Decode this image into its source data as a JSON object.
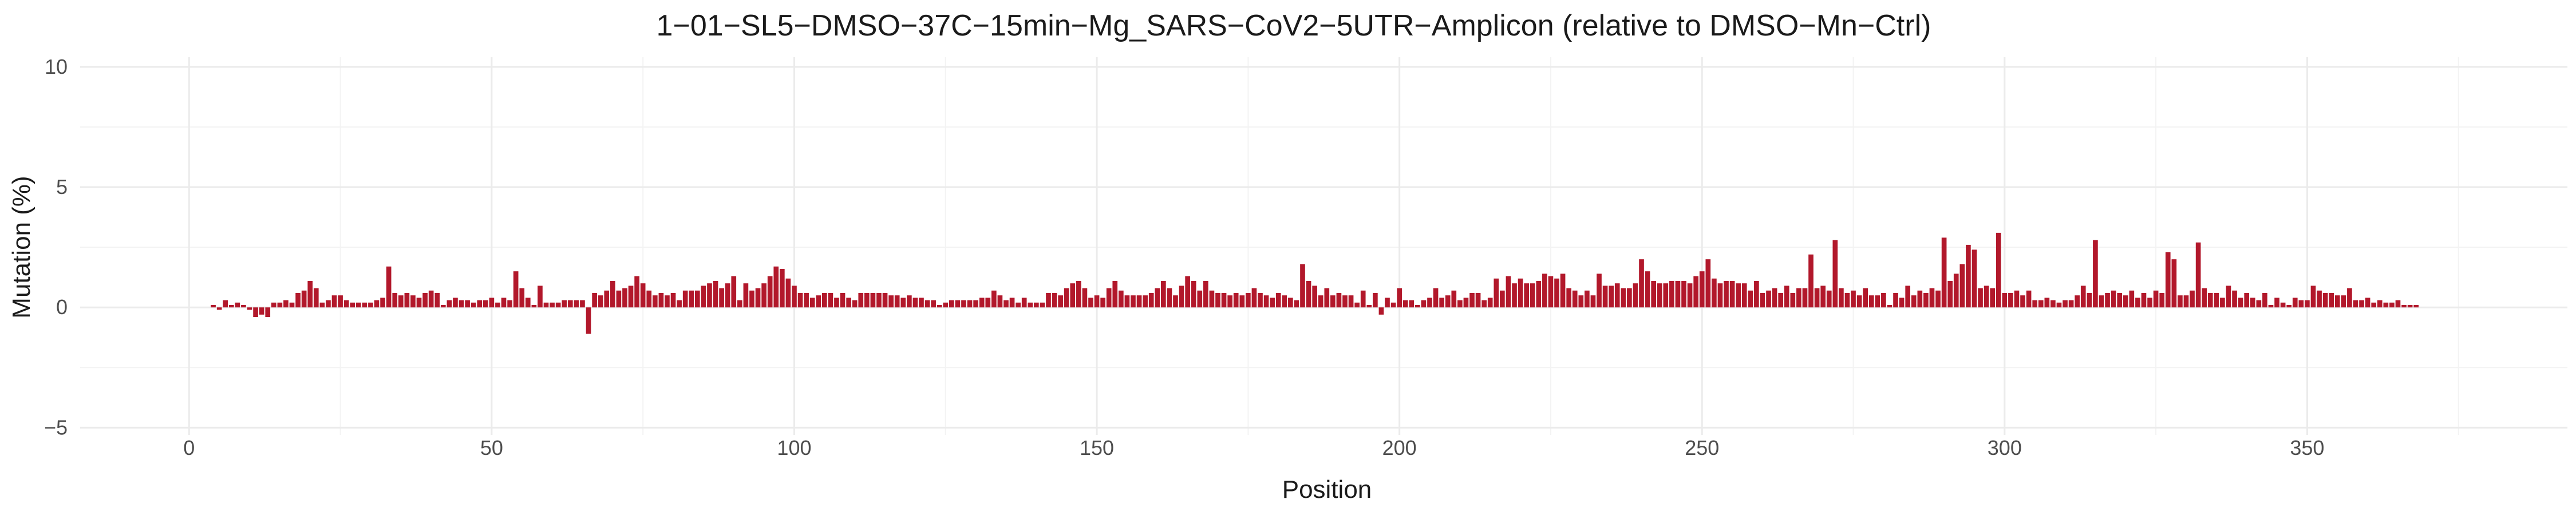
{
  "chart_data": {
    "type": "bar",
    "title": "1−01−SL5−DMSO−37C−15min−Mg_SARS−CoV2−5UTR−Amplicon (relative to DMSO−Mn−Ctrl)",
    "xlabel": "Position",
    "ylabel": "Mutation (%)",
    "xlim": [
      -18,
      393
    ],
    "ylim": [
      -5.3,
      10.4
    ],
    "x_ticks": [
      0,
      50,
      100,
      150,
      200,
      250,
      300,
      350
    ],
    "y_ticks": [
      -5,
      0,
      5,
      10
    ],
    "grid": true,
    "bar_color": "#b2182b",
    "positions": {
      "start": 4,
      "end": 375
    },
    "values": [
      0.1,
      -0.1,
      0.3,
      0.1,
      0.2,
      0.1,
      -0.1,
      -0.4,
      -0.3,
      -0.4,
      0.2,
      0.2,
      0.3,
      0.2,
      0.6,
      0.7,
      1.1,
      0.8,
      0.2,
      0.3,
      0.5,
      0.5,
      0.3,
      0.2,
      0.2,
      0.2,
      0.2,
      0.3,
      0.4,
      1.7,
      0.6,
      0.5,
      0.6,
      0.5,
      0.4,
      0.6,
      0.7,
      0.6,
      0.1,
      0.3,
      0.4,
      0.3,
      0.3,
      0.2,
      0.3,
      0.3,
      0.4,
      0.2,
      0.4,
      0.3,
      1.5,
      0.8,
      0.4,
      0.1,
      0.9,
      0.2,
      0.2,
      0.2,
      0.3,
      0.3,
      0.3,
      0.3,
      -1.1,
      0.6,
      0.5,
      0.7,
      1.1,
      0.7,
      0.8,
      0.9,
      1.3,
      1.0,
      0.7,
      0.5,
      0.6,
      0.5,
      0.6,
      0.3,
      0.7,
      0.7,
      0.7,
      0.9,
      1.0,
      1.1,
      0.8,
      1.0,
      1.3,
      0.3,
      1.0,
      0.7,
      0.8,
      1.0,
      1.3,
      1.7,
      1.6,
      1.2,
      0.9,
      0.6,
      0.6,
      0.4,
      0.5,
      0.6,
      0.6,
      0.4,
      0.6,
      0.4,
      0.3,
      0.6,
      0.6,
      0.6,
      0.6,
      0.6,
      0.5,
      0.5,
      0.4,
      0.5,
      0.4,
      0.4,
      0.3,
      0.3,
      0.1,
      0.2,
      0.3,
      0.3,
      0.3,
      0.3,
      0.3,
      0.4,
      0.4,
      0.7,
      0.5,
      0.3,
      0.4,
      0.2,
      0.4,
      0.2,
      0.2,
      0.2,
      0.6,
      0.6,
      0.5,
      0.8,
      1.0,
      1.1,
      0.8,
      0.4,
      0.5,
      0.4,
      0.8,
      1.1,
      0.7,
      0.5,
      0.5,
      0.5,
      0.5,
      0.6,
      0.8,
      1.1,
      0.8,
      0.5,
      0.9,
      1.3,
      1.1,
      0.7,
      1.1,
      0.7,
      0.6,
      0.6,
      0.5,
      0.6,
      0.5,
      0.6,
      0.8,
      0.6,
      0.5,
      0.4,
      0.6,
      0.5,
      0.4,
      0.3,
      1.8,
      1.1,
      0.9,
      0.5,
      0.8,
      0.5,
      0.6,
      0.5,
      0.5,
      0.2,
      0.7,
      0.1,
      0.6,
      -0.3,
      0.4,
      0.2,
      0.8,
      0.3,
      0.3,
      0.1,
      0.3,
      0.4,
      0.8,
      0.4,
      0.5,
      0.7,
      0.3,
      0.4,
      0.6,
      0.6,
      0.3,
      0.4,
      1.2,
      0.7,
      1.3,
      1.0,
      1.2,
      1.0,
      1.0,
      1.1,
      1.4,
      1.3,
      1.2,
      1.4,
      0.8,
      0.7,
      0.5,
      0.7,
      0.5,
      1.4,
      0.9,
      0.9,
      1.0,
      0.8,
      0.8,
      1.0,
      2.0,
      1.5,
      1.1,
      1.0,
      1.0,
      1.1,
      1.1,
      1.1,
      1.0,
      1.3,
      1.5,
      2.0,
      1.2,
      1.0,
      1.1,
      1.1,
      1.0,
      1.0,
      0.7,
      1.1,
      0.6,
      0.7,
      0.8,
      0.6,
      0.9,
      0.6,
      0.8,
      0.8,
      2.2,
      0.8,
      0.9,
      0.7,
      2.8,
      0.8,
      0.6,
      0.7,
      0.5,
      0.8,
      0.5,
      0.5,
      0.6,
      0.1,
      0.6,
      0.4,
      0.9,
      0.5,
      0.7,
      0.6,
      0.8,
      0.7,
      2.9,
      1.1,
      1.4,
      1.8,
      2.6,
      2.4,
      0.8,
      0.9,
      0.8,
      3.1,
      0.6,
      0.6,
      0.7,
      0.5,
      0.7,
      0.3,
      0.3,
      0.4,
      0.3,
      0.2,
      0.3,
      0.3,
      0.5,
      0.9,
      0.6,
      2.8,
      0.5,
      0.6,
      0.7,
      0.6,
      0.5,
      0.7,
      0.4,
      0.6,
      0.4,
      0.7,
      0.6,
      2.3,
      2.0,
      0.5,
      0.5,
      0.7,
      2.7,
      0.8,
      0.6,
      0.6,
      0.4,
      0.9,
      0.7,
      0.4,
      0.6,
      0.4,
      0.3,
      0.6,
      0.1,
      0.4,
      0.2,
      0.1,
      0.4,
      0.3,
      0.3,
      0.9,
      0.7,
      0.6,
      0.6,
      0.5,
      0.5,
      0.8,
      0.3,
      0.3,
      0.4,
      0.2,
      0.3,
      0.2,
      0.2,
      0.3,
      0.1,
      0.1,
      0.1
    ]
  }
}
